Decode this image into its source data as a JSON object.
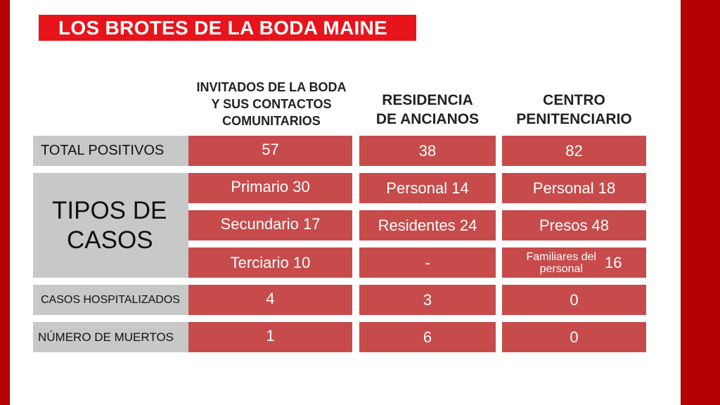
{
  "title": "LOS BROTES DE LA BODA MAINE",
  "columns": [
    {
      "line1": "INVITADOS DE LA BODA",
      "line2": "Y SUS CONTACTOS",
      "line3": "COMUNITARIOS"
    },
    {
      "line1": "RESIDENCIA",
      "line2": "DE ANCIANOS"
    },
    {
      "line1": "CENTRO",
      "line2": "PENITENCIARIO"
    }
  ],
  "rows": {
    "total": {
      "label": "TOTAL POSITIVOS",
      "values": [
        "57",
        "38",
        "82"
      ]
    },
    "tipos": {
      "label_line1": "TIPOS DE",
      "label_line2": "CASOS",
      "row1": [
        "Primario 30",
        "Personal 14",
        "Personal 18"
      ],
      "row2": [
        "Secundario 17",
        "Residentes 24",
        "Presos 48"
      ],
      "row3": {
        "col1": "Terciario 10",
        "col2": "-",
        "col3_label_line1": "Familiares del",
        "col3_label_line2": "personal",
        "col3_value": "16"
      }
    },
    "hospitalizados": {
      "label": "CASOS HOSPITALIZADOS",
      "values": [
        "4",
        "3",
        "0"
      ]
    },
    "muertos": {
      "label": "NÚMERO DE MUERTOS",
      "values": [
        "1",
        "6",
        "0"
      ]
    }
  },
  "colors": {
    "accent_red": "#e8141c",
    "dark_red": "#b30000",
    "cell_red": "#c84b4b",
    "label_gray": "#c8c8c8"
  }
}
